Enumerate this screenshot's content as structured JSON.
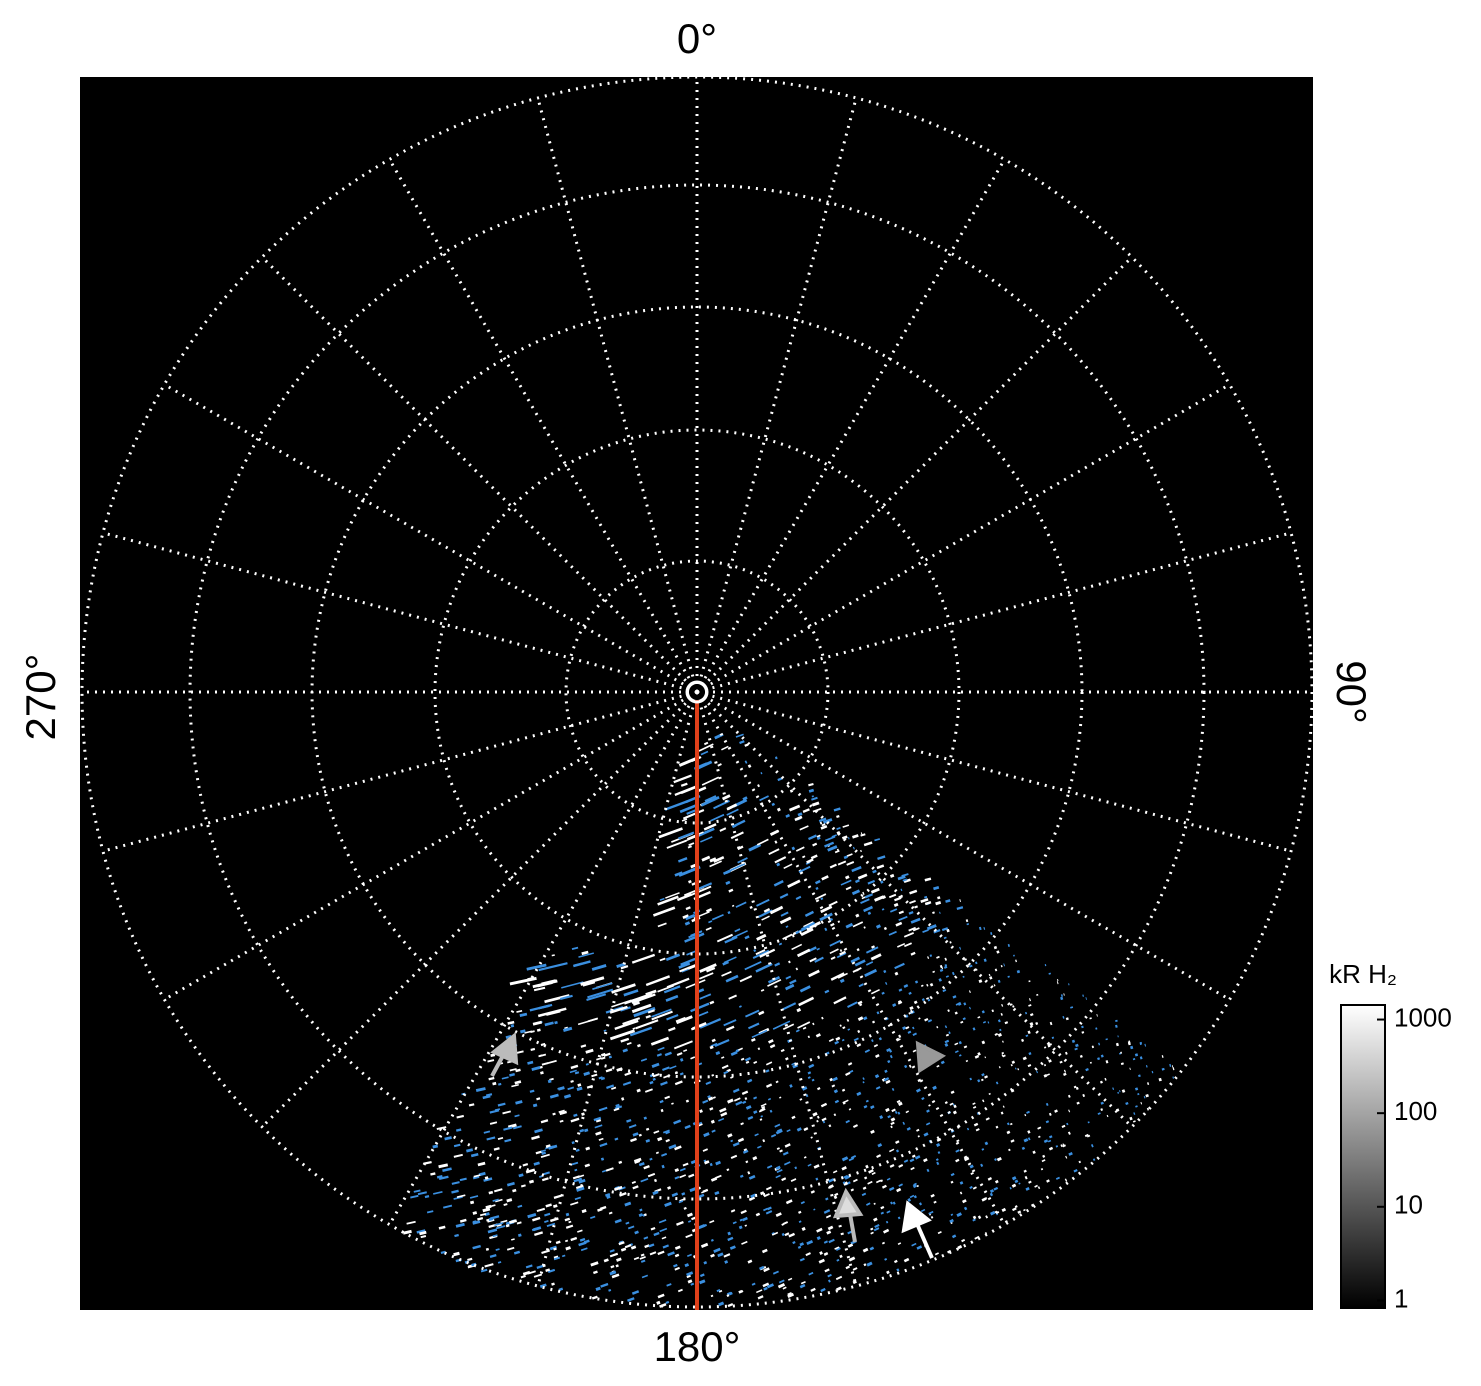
{
  "labels": {
    "top": "0°",
    "right": "90°",
    "bottom": "180°",
    "left": "270°"
  },
  "colorbar": {
    "title": "kR H₂",
    "scale": "log",
    "ylim": [
      0.83,
      1430
    ],
    "yticks": [
      1,
      10,
      100,
      1000
    ]
  }
}
